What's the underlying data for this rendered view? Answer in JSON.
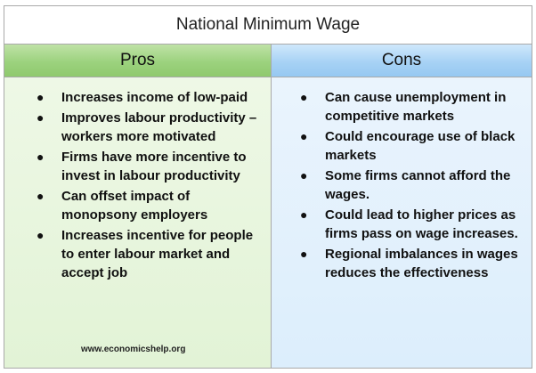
{
  "title": "National Minimum Wage",
  "pros": {
    "heading": "Pros",
    "items": [
      "Increases income of low-paid",
      "Improves labour productivity – workers more motivated",
      "Firms have more incentive to invest in labour productivity",
      "Can offset impact of monopsony employers",
      "Increases incentive for people to enter labour market and accept job"
    ]
  },
  "cons": {
    "heading": "Cons",
    "items": [
      "Can cause unemployment in competitive markets",
      "Could encourage use of black markets",
      "Some firms cannot afford the wages.",
      "Could lead to higher prices as firms pass on wage increases.",
      "Regional imbalances in wages reduces the effectiveness"
    ]
  },
  "footer": "www.economicshelp.org",
  "colors": {
    "pros_header": "#9cd27e",
    "pros_body": "#e6f4da",
    "cons_header": "#a7d2f5",
    "cons_body": "#e2f0fc",
    "border": "#a9a9a9"
  }
}
